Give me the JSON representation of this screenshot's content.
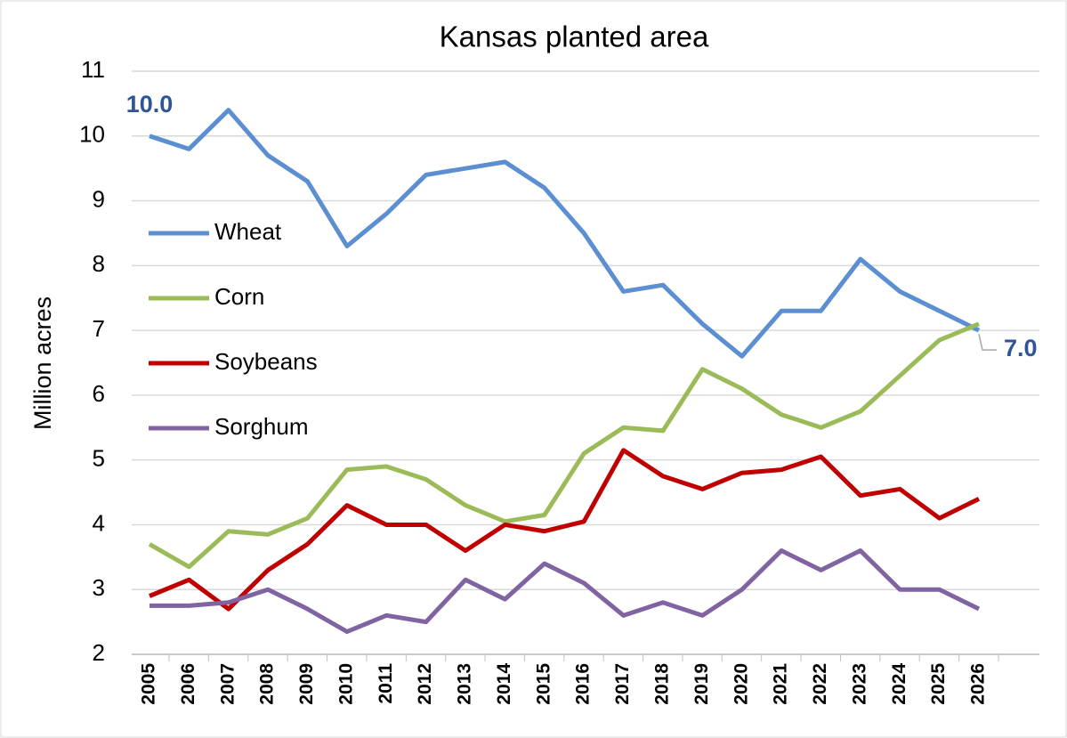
{
  "chart_data": {
    "type": "line",
    "title": "Kansas planted area",
    "y_label": "Million acres",
    "categories": [
      "2005",
      "2006",
      "2007",
      "2008",
      "2009",
      "2010",
      "2011",
      "2012",
      "2013",
      "2014",
      "2015",
      "2016",
      "2017",
      "2018",
      "2019",
      "2020",
      "2021",
      "2022",
      "2023",
      "2024",
      "2025",
      "2026"
    ],
    "ylim": [
      2,
      11
    ],
    "yticks": [
      2,
      3,
      4,
      5,
      6,
      7,
      8,
      9,
      10,
      11
    ],
    "grid": true,
    "legend": "upper left",
    "series": [
      {
        "name": "Wheat",
        "color": "#5b8fd1",
        "label_color": "#2f5597",
        "values": [
          10.0,
          9.8,
          10.4,
          9.7,
          9.3,
          8.3,
          8.8,
          9.4,
          9.5,
          9.6,
          9.2,
          8.5,
          7.6,
          7.7,
          7.1,
          6.6,
          7.3,
          7.3,
          8.1,
          7.6,
          7.3,
          7.0
        ],
        "value_labels": [
          "10.0",
          null,
          null,
          null,
          null,
          null,
          null,
          null,
          null,
          null,
          null,
          null,
          null,
          null,
          null,
          null,
          null,
          null,
          null,
          null,
          null,
          "7.0"
        ]
      },
      {
        "name": "Corn",
        "color": "#9bbb59",
        "label_color": "#77933c",
        "values": [
          3.7,
          3.35,
          3.9,
          3.85,
          4.1,
          4.85,
          4.9,
          4.7,
          4.3,
          4.05,
          4.15,
          5.1,
          5.5,
          5.45,
          6.4,
          6.1,
          5.7,
          5.5,
          5.75,
          6.3,
          6.85,
          7.1
        ],
        "value_labels": [
          null,
          null,
          null,
          null,
          null,
          null,
          null,
          null,
          null,
          null,
          null,
          null,
          null,
          null,
          null,
          null,
          null,
          null,
          null,
          null,
          null,
          null
        ]
      },
      {
        "name": "Soybeans",
        "color": "#c00000",
        "label_color": "#a5443f",
        "values": [
          2.9,
          3.15,
          2.7,
          3.3,
          3.7,
          4.3,
          4.0,
          4.0,
          3.6,
          4.0,
          3.9,
          4.05,
          5.15,
          4.75,
          4.55,
          4.8,
          4.85,
          5.05,
          4.45,
          4.55,
          4.1,
          4.4
        ],
        "value_labels": [
          null,
          null,
          null,
          null,
          null,
          null,
          null,
          null,
          null,
          null,
          null,
          null,
          null,
          null,
          null,
          null,
          null,
          null,
          null,
          null,
          null,
          null
        ]
      },
      {
        "name": "Sorghum",
        "color": "#8064a2",
        "label_color": "#7030a0",
        "values": [
          2.75,
          2.75,
          2.8,
          3.0,
          2.7,
          2.35,
          2.6,
          2.5,
          3.15,
          2.85,
          3.4,
          3.1,
          2.6,
          2.8,
          2.6,
          3.0,
          3.6,
          3.3,
          3.6,
          3.0,
          3.0,
          2.7
        ],
        "value_labels": [
          null,
          null,
          null,
          null,
          null,
          null,
          null,
          null,
          null,
          null,
          null,
          null,
          null,
          null,
          null,
          null,
          null,
          null,
          null,
          null,
          null,
          null
        ]
      }
    ]
  }
}
